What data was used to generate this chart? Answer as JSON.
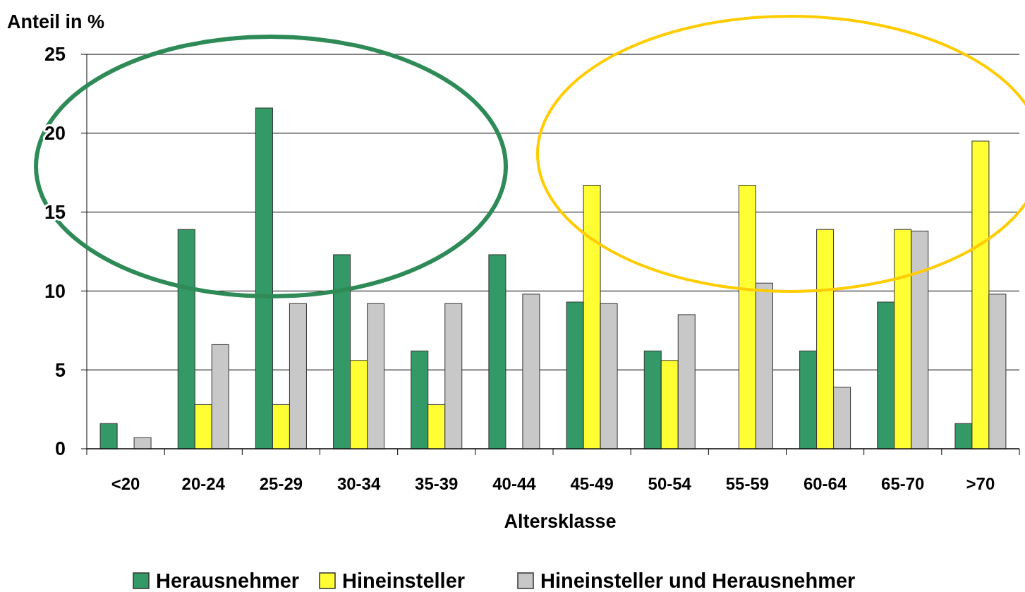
{
  "chart_data": {
    "type": "bar",
    "ylabel": "Anteil in %",
    "xlabel": "Altersklasse",
    "categories": [
      "<20",
      "20-24",
      "25-29",
      "30-34",
      "35-39",
      "40-44",
      "45-49",
      "50-54",
      "55-59",
      "60-64",
      "65-70",
      ">70"
    ],
    "series": [
      {
        "name": "Herausnehmer",
        "color": "#339966",
        "values": [
          1.6,
          13.9,
          21.6,
          12.3,
          6.2,
          12.3,
          9.3,
          6.2,
          0,
          6.2,
          9.3,
          1.6
        ]
      },
      {
        "name": "Hineinsteller",
        "color": "#ffff33",
        "values": [
          0,
          2.8,
          2.8,
          5.6,
          2.8,
          0,
          16.7,
          5.6,
          16.7,
          13.9,
          13.9,
          19.5
        ]
      },
      {
        "name": "Hineinsteller und Herausnehmer",
        "color": "#c8c8c8",
        "values": [
          0.7,
          6.6,
          9.2,
          9.2,
          9.2,
          9.8,
          9.2,
          8.5,
          10.5,
          3.9,
          13.8,
          9.8
        ]
      }
    ],
    "ylim": [
      0,
      25
    ],
    "yticks": [
      0,
      5,
      10,
      15,
      20,
      25
    ],
    "grid": "y",
    "legend": "bottom"
  }
}
